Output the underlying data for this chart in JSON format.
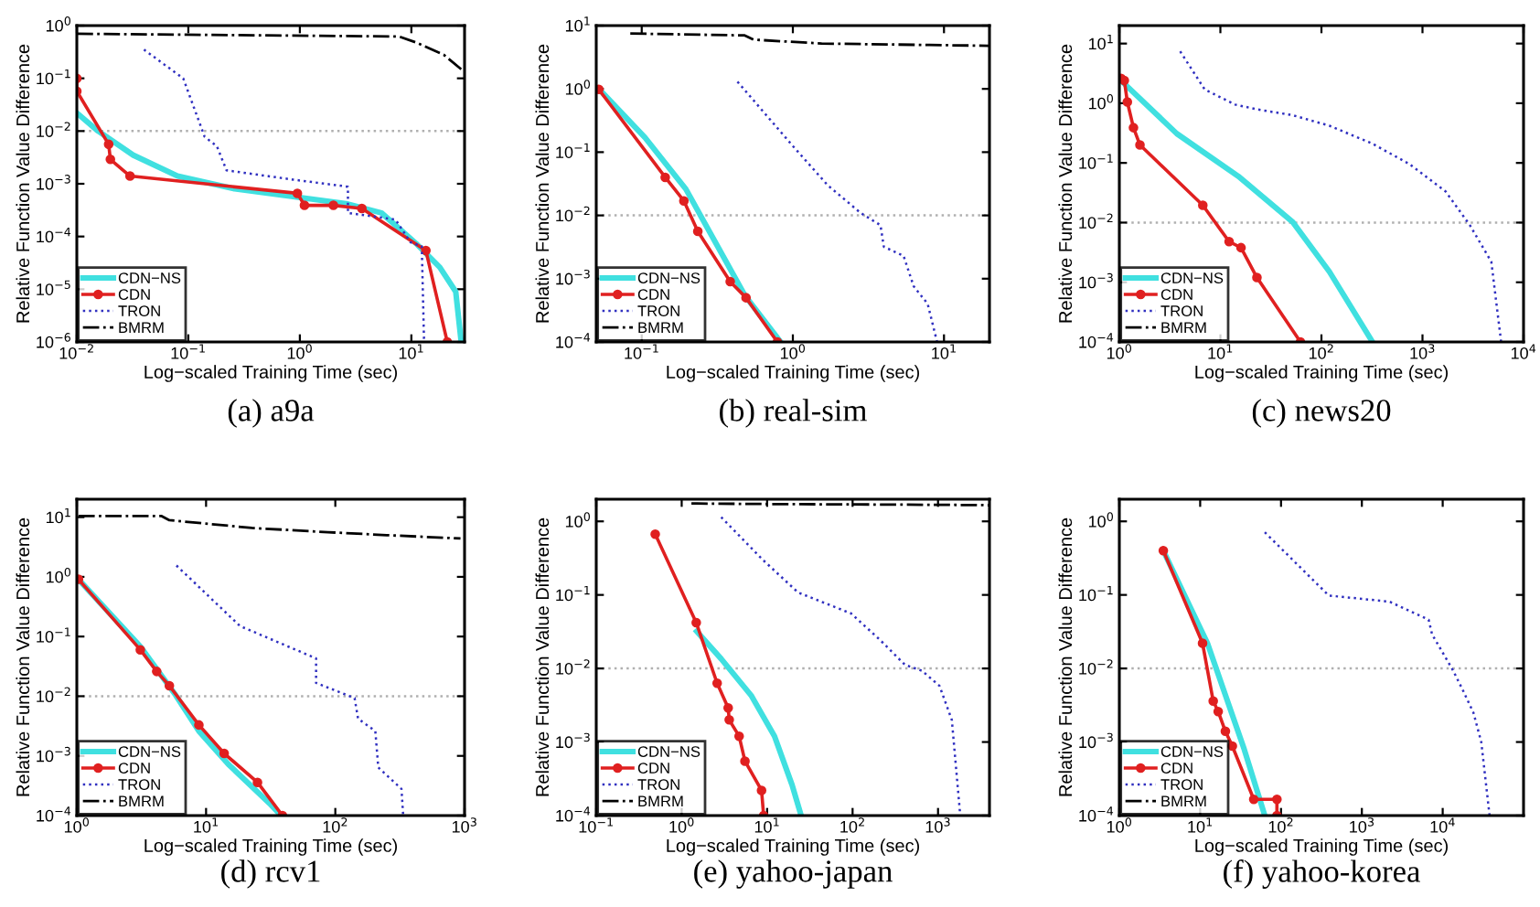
{
  "chart_data": [
    {
      "type": "line",
      "title": "(a) a9a",
      "xlabel": "Log−scaled Training Time (sec)",
      "ylabel": "Relative Function Value Difference",
      "log": "xy",
      "legend": "bottom left",
      "grid": false,
      "xlim": [
        0.01,
        30
      ],
      "ylim": [
        1e-06,
        1
      ],
      "xticks": [
        {
          "value": 0.01,
          "label": "10$^{−2}$"
        },
        {
          "value": 0.1,
          "label": "10$^{−1}$"
        },
        {
          "value": 1,
          "label": "10$^{0}$"
        },
        {
          "value": 10,
          "label": "10$^{1}$"
        }
      ],
      "yticks": [
        {
          "value": 1e-06,
          "label": "10$^{−6}$"
        },
        {
          "value": 1e-05,
          "label": "10$^{−5}$"
        },
        {
          "value": 0.0001,
          "label": "10$^{−4}$"
        },
        {
          "value": 0.001,
          "label": "10$^{−3}$"
        },
        {
          "value": 0.01,
          "label": "10$^{−2}$"
        },
        {
          "value": 0.1,
          "label": "10$^{−1}$"
        },
        {
          "value": 1,
          "label": "10$^{0}$"
        }
      ],
      "ref_lines": [
        {
          "axis": "y",
          "value": 0.01,
          "color": "#b0b0b0",
          "line_style": "dotted"
        }
      ],
      "series": [
        {
          "name": "CDN−NS",
          "color": "#40e0e0",
          "line_style": "solid",
          "marker": "none",
          "x": [
            0.01,
            0.0155,
            0.032,
            0.08,
            0.26,
            1.0,
            2.6,
            5.4,
            11,
            18,
            25,
            28
          ],
          "values": [
            0.022,
            0.01,
            0.0035,
            0.0014,
            0.0008,
            0.00055,
            0.00042,
            0.00028,
            7.4e-05,
            2.6e-05,
            9e-06,
            1e-06
          ]
        },
        {
          "name": "CDN",
          "color": "#e02020",
          "line_style": "solid",
          "marker": "circle",
          "x": [
            0.01,
            0.01,
            0.0193,
            0.02,
            0.03,
            0.95,
            1.1,
            2.0,
            3.6,
            13.5,
            21
          ],
          "values": [
            0.1,
            0.057,
            0.0056,
            0.0029,
            0.0014,
            0.00066,
            0.00039,
            0.00039,
            0.00034,
            5.4e-05,
            1e-06
          ]
        },
        {
          "name": "TRON",
          "color": "#3030c0",
          "line_style": "dotted",
          "marker": "none",
          "x": [
            0.04,
            0.09,
            0.14,
            0.18,
            0.22,
            0.87,
            2.7,
            2.7,
            7.2,
            9.8,
            12.4,
            13
          ],
          "values": [
            0.35,
            0.1,
            0.0078,
            0.0052,
            0.0018,
            0.0012,
            0.00088,
            0.00028,
            0.00021,
            7.8e-05,
            6.5e-05,
            1e-06
          ]
        },
        {
          "name": "BMRM",
          "color": "#000000",
          "line_style": "dashdot",
          "marker": "none",
          "x": [
            0.01,
            7.8,
            11,
            19.5,
            29
          ],
          "values": [
            0.7,
            0.62,
            0.48,
            0.28,
            0.14
          ]
        }
      ]
    },
    {
      "type": "line",
      "title": "(b) real-sim",
      "xlabel": "Log−scaled Training Time (sec)",
      "ylabel": "Relative Function Value Difference",
      "log": "xy",
      "legend": "bottom left",
      "grid": false,
      "xlim": [
        0.05,
        20
      ],
      "ylim": [
        0.0001,
        10
      ],
      "xticks": [
        {
          "value": 0.1,
          "label": "10$^{−1}$"
        },
        {
          "value": 1,
          "label": "10$^{0}$"
        },
        {
          "value": 10,
          "label": "10$^{1}$"
        }
      ],
      "yticks": [
        {
          "value": 0.0001,
          "label": "10$^{−4}$"
        },
        {
          "value": 0.001,
          "label": "10$^{−3}$"
        },
        {
          "value": 0.01,
          "label": "10$^{−2}$"
        },
        {
          "value": 0.1,
          "label": "10$^{−1}$"
        },
        {
          "value": 1,
          "label": "10$^{0}$"
        },
        {
          "value": 10,
          "label": "10$^{1}$"
        }
      ],
      "ref_lines": [
        {
          "axis": "y",
          "value": 0.01,
          "color": "#b0b0b0",
          "line_style": "dotted"
        }
      ],
      "series": [
        {
          "name": "CDN−NS",
          "color": "#40e0e0",
          "line_style": "solid",
          "marker": "none",
          "x": [
            0.052,
            0.105,
            0.196,
            0.48,
            0.83
          ],
          "values": [
            1.0,
            0.17,
            0.026,
            0.00055,
            0.0001
          ]
        },
        {
          "name": "CDN",
          "color": "#e02020",
          "line_style": "solid",
          "marker": "circle",
          "x": [
            0.052,
            0.143,
            0.19,
            0.235,
            0.385,
            0.49,
            0.79
          ],
          "values": [
            0.98,
            0.04,
            0.017,
            0.0056,
            0.0009,
            0.0005,
            0.0001
          ]
        },
        {
          "name": "TRON",
          "color": "#3030c0",
          "line_style": "dotted",
          "marker": "none",
          "x": [
            0.43,
            1.0,
            1.7,
            2.8,
            3.8,
            4.0,
            5.4,
            6.3,
            7.8,
            9.0
          ],
          "values": [
            1.3,
            0.125,
            0.03,
            0.011,
            0.007,
            0.0032,
            0.0023,
            0.00076,
            0.0004,
            0.0001
          ]
        },
        {
          "name": "BMRM",
          "color": "#000000",
          "line_style": "dashdot",
          "marker": "none",
          "x": [
            0.084,
            0.48,
            0.55,
            1.55,
            20
          ],
          "values": [
            7.5,
            7.0,
            6.0,
            5.2,
            4.8
          ]
        }
      ]
    },
    {
      "type": "line",
      "title": "(c) news20",
      "xlabel": "Log−scaled Training Time (sec)",
      "ylabel": "Relative Function Value Difference",
      "log": "xy",
      "legend": "bottom left",
      "grid": false,
      "xlim": [
        1,
        10000
      ],
      "ylim": [
        0.0001,
        20
      ],
      "xticks": [
        {
          "value": 1,
          "label": "10$^{0}$"
        },
        {
          "value": 10,
          "label": "10$^{1}$"
        },
        {
          "value": 100,
          "label": "10$^{2}$"
        },
        {
          "value": 1000,
          "label": "10$^{3}$"
        },
        {
          "value": 10000,
          "label": "10$^{4}$"
        }
      ],
      "yticks": [
        {
          "value": 0.0001,
          "label": "10$^{−4}$"
        },
        {
          "value": 0.001,
          "label": "10$^{−3}$"
        },
        {
          "value": 0.01,
          "label": "10$^{−2}$"
        },
        {
          "value": 0.1,
          "label": "10$^{−1}$"
        },
        {
          "value": 1,
          "label": "10$^{0}$"
        },
        {
          "value": 10,
          "label": "10$^{1}$"
        }
      ],
      "ref_lines": [
        {
          "axis": "y",
          "value": 0.01,
          "color": "#b0b0b0",
          "line_style": "dotted"
        }
      ],
      "series": [
        {
          "name": "CDN−NS",
          "color": "#40e0e0",
          "line_style": "solid",
          "marker": "none",
          "x": [
            1.04,
            3.7,
            15,
            52,
            120,
            320
          ],
          "values": [
            2.4,
            0.31,
            0.06,
            0.0102,
            0.0015,
            0.0001
          ]
        },
        {
          "name": "CDN",
          "color": "#e02020",
          "line_style": "solid",
          "marker": "circle",
          "x": [
            1.04,
            1.12,
            1.2,
            1.38,
            1.6,
            6.7,
            12.2,
            16,
            23,
            62
          ],
          "values": [
            2.6,
            2.4,
            1.05,
            0.39,
            0.2,
            0.0195,
            0.0048,
            0.0038,
            0.0012,
            0.0001
          ]
        },
        {
          "name": "TRON",
          "color": "#3030c0",
          "line_style": "dotted",
          "marker": "none",
          "x": [
            4.0,
            7,
            14,
            23,
            52,
            120,
            320,
            740,
            1700,
            2950,
            4800,
            6000
          ],
          "values": [
            7.4,
            1.7,
            0.95,
            0.79,
            0.63,
            0.42,
            0.21,
            0.096,
            0.033,
            0.009,
            0.0022,
            0.0001
          ]
        },
        {
          "name": "BMRM",
          "color": "#000000",
          "line_style": "dashdot",
          "marker": "none"
        }
      ]
    },
    {
      "type": "line",
      "title": "(d) rcv1",
      "xlabel": "Log−scaled Training Time (sec)",
      "ylabel": "Relative Function Value Difference",
      "log": "xy",
      "legend": "bottom left",
      "grid": false,
      "xlim": [
        1,
        1000
      ],
      "ylim": [
        0.0001,
        20
      ],
      "xticks": [
        {
          "value": 1,
          "label": "10$^{0}$"
        },
        {
          "value": 10,
          "label": "10$^{1}$"
        },
        {
          "value": 100,
          "label": "10$^{2}$"
        },
        {
          "value": 1000,
          "label": "10$^{3}$"
        }
      ],
      "yticks": [
        {
          "value": 0.0001,
          "label": "10$^{−4}$"
        },
        {
          "value": 0.001,
          "label": "10$^{−3}$"
        },
        {
          "value": 0.01,
          "label": "10$^{−2}$"
        },
        {
          "value": 0.1,
          "label": "10$^{−1}$"
        },
        {
          "value": 1,
          "label": "10$^{0}$"
        },
        {
          "value": 10,
          "label": "10$^{1}$"
        }
      ],
      "ref_lines": [
        {
          "axis": "y",
          "value": 0.01,
          "color": "#b0b0b0",
          "line_style": "dotted"
        }
      ],
      "series": [
        {
          "name": "CDN−NS",
          "color": "#40e0e0",
          "line_style": "solid",
          "marker": "none",
          "x": [
            1.03,
            3.1,
            5.8,
            8.8,
            14.9,
            31,
            38
          ],
          "values": [
            0.91,
            0.068,
            0.0105,
            0.0026,
            0.00072,
            0.00016,
            0.0001
          ]
        },
        {
          "name": "CDN",
          "color": "#e02020",
          "line_style": "solid",
          "marker": "circle",
          "x": [
            1.03,
            3.1,
            4.15,
            5.2,
            8.8,
            13.8,
            25,
            39
          ],
          "values": [
            0.91,
            0.06,
            0.026,
            0.015,
            0.0033,
            0.0011,
            0.00036,
            0.0001
          ]
        },
        {
          "name": "TRON",
          "color": "#3030c0",
          "line_style": "dotted",
          "marker": "none",
          "x": [
            5.9,
            18.3,
            71,
            71,
            141,
            150,
            204,
            215,
            325,
            335
          ],
          "values": [
            1.55,
            0.15,
            0.043,
            0.0167,
            0.0093,
            0.0042,
            0.0026,
            0.00064,
            0.00028,
            0.0001
          ]
        },
        {
          "name": "BMRM",
          "color": "#000000",
          "line_style": "dashdot",
          "marker": "none",
          "x": [
            1.03,
            4.5,
            5.2,
            22.6,
            88,
            250,
            930
          ],
          "values": [
            10.5,
            10.5,
            8.9,
            6.6,
            5.6,
            5.0,
            4.4
          ]
        }
      ]
    },
    {
      "type": "line",
      "title": "(e) yahoo-japan",
      "xlabel": "Log−scaled Training Time (sec)",
      "ylabel": "Relative Function Value Difference",
      "log": "xy",
      "legend": "bottom left",
      "grid": false,
      "xlim": [
        0.1,
        4000
      ],
      "ylim": [
        0.0001,
        2
      ],
      "xticks": [
        {
          "value": 0.1,
          "label": "10$^{−1}$"
        },
        {
          "value": 1,
          "label": "10$^{0}$"
        },
        {
          "value": 10,
          "label": "10$^{1}$"
        },
        {
          "value": 100,
          "label": "10$^{2}$"
        },
        {
          "value": 1000,
          "label": "10$^{3}$"
        }
      ],
      "yticks": [
        {
          "value": 0.0001,
          "label": "10$^{−4}$"
        },
        {
          "value": 0.001,
          "label": "10$^{−3}$"
        },
        {
          "value": 0.01,
          "label": "10$^{−2}$"
        },
        {
          "value": 0.1,
          "label": "10$^{−1}$"
        },
        {
          "value": 1,
          "label": "10$^{0}$"
        }
      ],
      "ref_lines": [
        {
          "axis": "y",
          "value": 0.01,
          "color": "#b0b0b0",
          "line_style": "dotted"
        }
      ],
      "series": [
        {
          "name": "CDN−NS",
          "color": "#40e0e0",
          "line_style": "solid",
          "marker": "none",
          "x": [
            1.5,
            2.9,
            6.5,
            12.2,
            19.6,
            25
          ],
          "values": [
            0.032,
            0.0135,
            0.0043,
            0.0012,
            0.00026,
            0.0001
          ]
        },
        {
          "name": "CDN",
          "color": "#e02020",
          "line_style": "solid",
          "marker": "circle",
          "x": [
            0.49,
            1.48,
            2.6,
            3.5,
            3.6,
            4.7,
            5.5,
            8.6,
            9.1
          ],
          "values": [
            0.67,
            0.042,
            0.0063,
            0.0029,
            0.002,
            0.0012,
            0.00055,
            0.00022,
            0.0001
          ]
        },
        {
          "name": "TRON",
          "color": "#3030c0",
          "line_style": "dotted",
          "marker": "none",
          "x": [
            2.9,
            8.9,
            23,
            96,
            213,
            410,
            650,
            1040,
            1450,
            1820
          ],
          "values": [
            1.14,
            0.3,
            0.108,
            0.056,
            0.024,
            0.0112,
            0.0093,
            0.0058,
            0.002,
            0.0001
          ]
        },
        {
          "name": "BMRM",
          "color": "#000000",
          "line_style": "dashdot",
          "marker": "none",
          "x": [
            1.3,
            10,
            100,
            1000,
            4000
          ],
          "values": [
            1.75,
            1.72,
            1.7,
            1.68,
            1.66
          ]
        }
      ]
    },
    {
      "type": "line",
      "title": "(f) yahoo-korea",
      "xlabel": "Log−scaled Training Time (sec)",
      "ylabel": "Relative Function Value Difference",
      "log": "xy",
      "legend": "bottom left",
      "grid": false,
      "xlim": [
        1,
        100000
      ],
      "ylim": [
        0.0001,
        2
      ],
      "xticks": [
        {
          "value": 1,
          "label": "10$^{0}$"
        },
        {
          "value": 10,
          "label": "10$^{1}$"
        },
        {
          "value": 100,
          "label": "10$^{2}$"
        },
        {
          "value": 1000,
          "label": "10$^{3}$"
        },
        {
          "value": 10000,
          "label": "10$^{4}$"
        }
      ],
      "yticks": [
        {
          "value": 0.0001,
          "label": "10$^{−4}$"
        },
        {
          "value": 0.001,
          "label": "10$^{−3}$"
        },
        {
          "value": 0.01,
          "label": "10$^{−2}$"
        },
        {
          "value": 0.1,
          "label": "10$^{−1}$"
        },
        {
          "value": 1,
          "label": "10$^{0}$"
        }
      ],
      "ref_lines": [
        {
          "axis": "y",
          "value": 0.01,
          "color": "#b0b0b0",
          "line_style": "dotted"
        }
      ],
      "series": [
        {
          "name": "CDN−NS",
          "color": "#40e0e0",
          "line_style": "solid",
          "marker": "none",
          "x": [
            3.5,
            12.3,
            35,
            63
          ],
          "values": [
            0.4,
            0.022,
            0.0008,
            0.0001
          ]
        },
        {
          "name": "CDN",
          "color": "#e02020",
          "line_style": "solid",
          "marker": "circle",
          "x": [
            3.5,
            10.7,
            14.5,
            16.7,
            20.5,
            25,
            46,
            89,
            89
          ],
          "values": [
            0.4,
            0.022,
            0.0036,
            0.0026,
            0.0014,
            0.00088,
            0.000166,
            0.000166,
            0.0001
          ]
        },
        {
          "name": "TRON",
          "color": "#3030c0",
          "line_style": "dotted",
          "marker": "none",
          "x": [
            63,
            390,
            2200,
            6700,
            7400,
            13500,
            17400,
            24000,
            30000,
            38000
          ],
          "values": [
            0.71,
            0.098,
            0.081,
            0.046,
            0.029,
            0.0093,
            0.0053,
            0.0025,
            0.001,
            0.0001
          ]
        },
        {
          "name": "BMRM",
          "color": "#000000",
          "line_style": "dashdot",
          "marker": "none"
        }
      ]
    }
  ]
}
